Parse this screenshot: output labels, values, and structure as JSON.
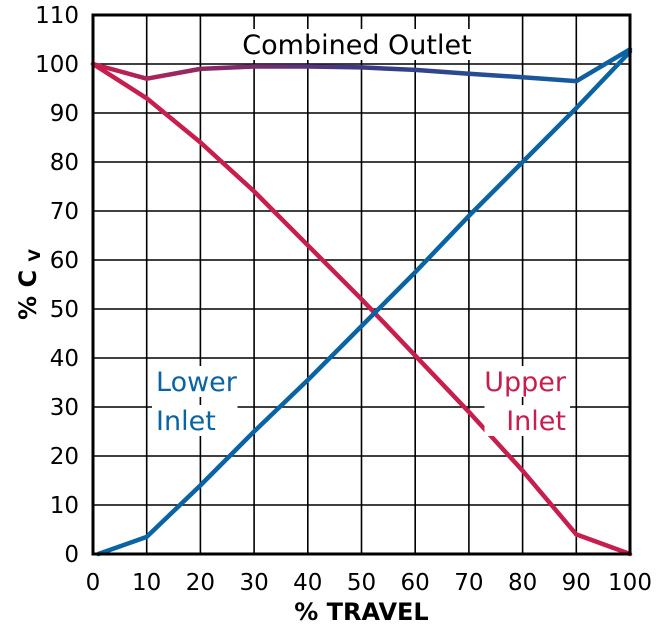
{
  "chart_data": {
    "type": "line",
    "xlabel": "% TRAVEL",
    "ylabel": {
      "main": "% C",
      "sub": "V"
    },
    "xlim": [
      0,
      100
    ],
    "ylim": [
      0,
      110
    ],
    "x_ticks": [
      0,
      10,
      20,
      30,
      40,
      50,
      60,
      70,
      80,
      90,
      100
    ],
    "y_ticks": [
      0,
      10,
      20,
      30,
      40,
      50,
      60,
      70,
      80,
      90,
      100,
      110
    ],
    "grid": true,
    "series": [
      {
        "name": "Combined Outlet",
        "label_lines": [
          "Combined Outlet"
        ],
        "color": "#3d3a85",
        "x": [
          0,
          10,
          20,
          30,
          40,
          50,
          60,
          70,
          80,
          90,
          100
        ],
        "y": [
          100,
          97,
          99,
          99.5,
          99.5,
          99.3,
          98.8,
          98,
          97.3,
          96.5,
          103
        ]
      },
      {
        "name": "Lower Inlet",
        "label_lines": [
          "Lower",
          "Inlet"
        ],
        "color": "#0a64a4",
        "x": [
          1,
          10,
          20,
          30,
          40,
          50,
          60,
          70,
          80,
          90,
          100
        ],
        "y": [
          0,
          3.5,
          14,
          25,
          35.5,
          46.5,
          57.5,
          69,
          80,
          91,
          102.5
        ]
      },
      {
        "name": "Upper Inlet",
        "label_lines": [
          "Upper",
          "Inlet"
        ],
        "color": "#c71e4e",
        "x": [
          0,
          10,
          20,
          30,
          40,
          50,
          60,
          70,
          80,
          90,
          100
        ],
        "y": [
          100,
          93,
          84,
          74,
          63,
          52,
          40.5,
          29,
          17,
          4,
          0
        ]
      }
    ]
  }
}
